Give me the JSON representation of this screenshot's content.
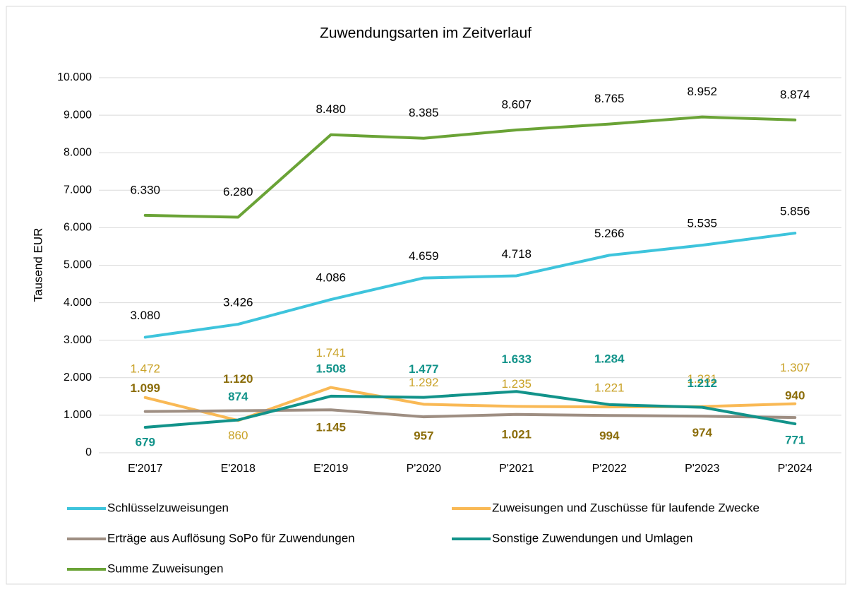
{
  "chart_data": {
    "type": "line",
    "title": "Zuwendungsarten im Zeitverlauf",
    "y_label": "Tausend EUR",
    "categories": [
      "E'2017",
      "E'2018",
      "E'2019",
      "P'2020",
      "P'2021",
      "P'2022",
      "P'2023",
      "P'2024"
    ],
    "ylim": [
      0,
      10000
    ],
    "yticks": [
      0,
      {
        "value": 1000,
        "label": "1.000"
      },
      {
        "value": 2000,
        "label": "2.000"
      },
      {
        "value": 3000,
        "label": "3.000"
      },
      {
        "value": 4000,
        "label": "4.000"
      },
      {
        "value": 5000,
        "label": "5.000"
      },
      {
        "value": 6000,
        "label": "6.000"
      },
      {
        "value": 7000,
        "label": "7.000"
      },
      {
        "value": 8000,
        "label": "8.000"
      },
      {
        "value": 9000,
        "label": "9.000"
      },
      {
        "value": 10000,
        "label": "10.000"
      }
    ],
    "grid": true,
    "series": [
      {
        "name": "Schlüsselzuweisungen",
        "color": "#3ec4dc",
        "label_color": "#000000",
        "label_bold": false,
        "values": [
          3080,
          3426,
          4086,
          4659,
          4718,
          5266,
          5535,
          5856
        ],
        "value_labels": [
          "3.080",
          "3.426",
          "4.086",
          "4.659",
          "4.718",
          "5.266",
          "5.535",
          "5.856"
        ]
      },
      {
        "name": "Zuweisungen und Zuschüsse für laufende Zwecke",
        "color": "#f9b955",
        "label_color": "#c9a227",
        "label_bold": false,
        "values": [
          1472,
          860,
          1741,
          1292,
          1235,
          1221,
          1231,
          1307
        ],
        "value_labels": [
          "1.472",
          "860",
          "1.741",
          "1.292",
          "1.235",
          "1.221",
          "1.231",
          "1.307"
        ]
      },
      {
        "name": "Erträge aus Auflösung SoPo für Zuwendungen",
        "color": "#9e8e82",
        "label_color": "#8b6d0a",
        "label_bold": true,
        "values": [
          1099,
          1120,
          1145,
          957,
          1021,
          994,
          974,
          940
        ],
        "value_labels": [
          "1.099",
          "1.120",
          "1.145",
          "957",
          "1.021",
          "994",
          "974",
          "940"
        ]
      },
      {
        "name": "Sonstige Zuwendungen und Umlagen",
        "color": "#12938a",
        "label_color": "#12938a",
        "label_bold": true,
        "values": [
          679,
          874,
          1508,
          1477,
          1633,
          1284,
          1212,
          771
        ],
        "value_labels": [
          "679",
          "874",
          "1.508",
          "1.477",
          "1.633",
          "1.284",
          "1.212",
          "771"
        ]
      },
      {
        "name": "Summe Zuweisungen",
        "color": "#6aa336",
        "label_color": "#000000",
        "label_bold": false,
        "values": [
          6330,
          6280,
          8480,
          8385,
          8607,
          8765,
          8952,
          8874
        ],
        "value_labels": [
          "6.330",
          "6.280",
          "8.480",
          "8.385",
          "8.607",
          "8.765",
          "8.952",
          "8.874"
        ]
      }
    ]
  }
}
